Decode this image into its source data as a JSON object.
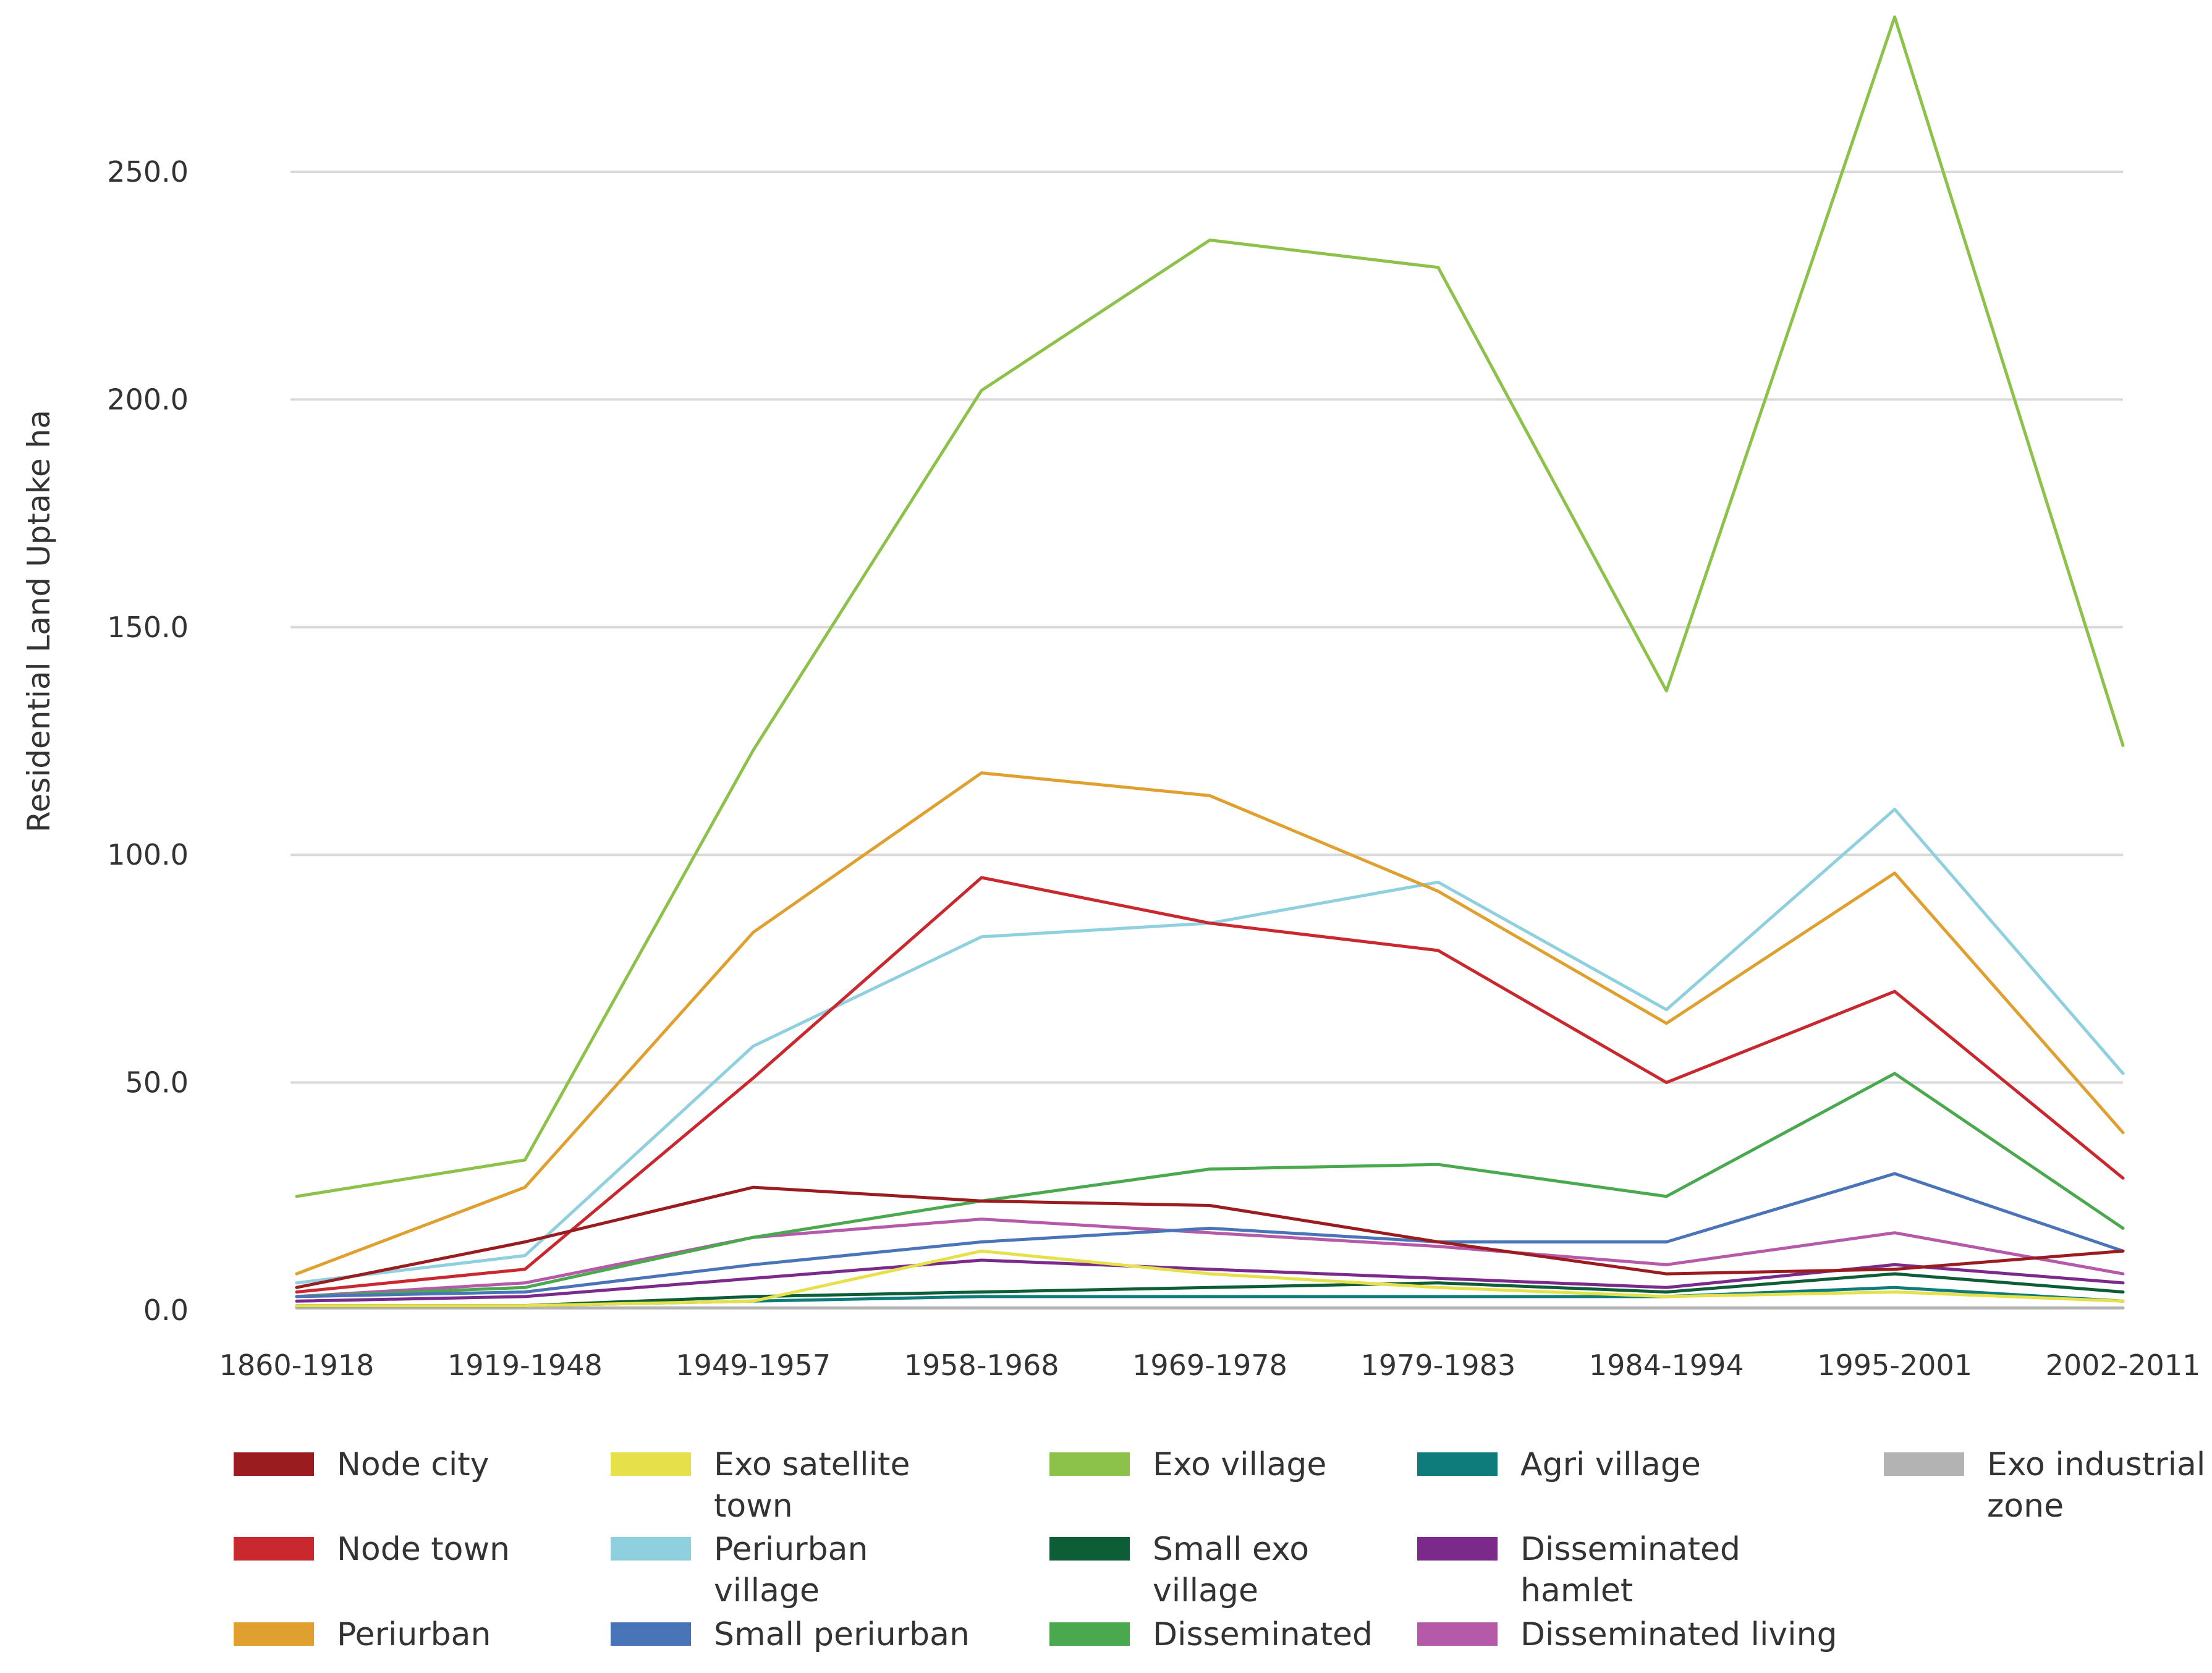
{
  "chart_data": {
    "type": "line",
    "title": "",
    "xlabel": "",
    "ylabel": "Residential  Land Uptake ha",
    "ylim": [
      0,
      280
    ],
    "yticks": [
      "0.0",
      "50.0",
      "100.0",
      "150.0",
      "200.0",
      "250.0"
    ],
    "ytick_values": [
      0,
      50,
      100,
      150,
      200,
      250
    ],
    "grid": true,
    "legend_position": "bottom",
    "categories": [
      "1860-1918",
      "1919-1948",
      "1949-1957",
      "1958-1968",
      "1969-1978",
      "1979-1983",
      "1984-1994",
      "1995-2001",
      "2002-2011"
    ],
    "series": [
      {
        "name": "Node city",
        "label_lines": [
          "Node city"
        ],
        "color": "#9b1c1f",
        "values": [
          5,
          15,
          27,
          24,
          23,
          15,
          8,
          9,
          13
        ]
      },
      {
        "name": "Node town",
        "label_lines": [
          "Node town"
        ],
        "color": "#c8282e",
        "values": [
          4,
          9,
          51,
          95,
          85,
          79,
          50,
          70,
          29
        ]
      },
      {
        "name": "Periurban",
        "label_lines": [
          "Periurban"
        ],
        "color": "#e0a030",
        "values": [
          8,
          27,
          83,
          118,
          113,
          92,
          63,
          96,
          39
        ]
      },
      {
        "name": "Exo satellite town",
        "label_lines": [
          "Exo satellite",
          "town"
        ],
        "color": "#e6e04a",
        "values": [
          1,
          1,
          2,
          13,
          8,
          5,
          3,
          4,
          2
        ]
      },
      {
        "name": "Periurban village",
        "label_lines": [
          "Periurban",
          "village"
        ],
        "color": "#8fd0de",
        "values": [
          6,
          12,
          58,
          82,
          85,
          94,
          66,
          110,
          52
        ]
      },
      {
        "name": "Small periurban",
        "label_lines": [
          "Small periurban"
        ],
        "color": "#4a74b8",
        "values": [
          3,
          4,
          10,
          15,
          18,
          15,
          15,
          30,
          13
        ]
      },
      {
        "name": "Exo village",
        "label_lines": [
          "Exo village"
        ],
        "color": "#8cc24a",
        "values": [
          25,
          33,
          123,
          202,
          235,
          229,
          136,
          284,
          124
        ]
      },
      {
        "name": "Small exo village",
        "label_lines": [
          "Small exo",
          "village"
        ],
        "color": "#0d5e36",
        "values": [
          1,
          1,
          3,
          4,
          5,
          6,
          4,
          8,
          4
        ]
      },
      {
        "name": "Disseminated",
        "label_lines": [
          "Disseminated"
        ],
        "color": "#4aa84e",
        "values": [
          3,
          5,
          16,
          24,
          31,
          32,
          25,
          52,
          18
        ]
      },
      {
        "name": "Agri village",
        "label_lines": [
          "Agri village"
        ],
        "color": "#0e7c7b",
        "values": [
          1,
          1,
          2,
          3,
          3,
          3,
          3,
          5,
          2
        ]
      },
      {
        "name": "Disseminated hamlet",
        "label_lines": [
          "Disseminated",
          "hamlet"
        ],
        "color": "#7b2a8c",
        "values": [
          2,
          3,
          7,
          11,
          9,
          7,
          5,
          10,
          6
        ]
      },
      {
        "name": "Disseminated living",
        "label_lines": [
          "Disseminated living"
        ],
        "color": "#b55aa8",
        "values": [
          3,
          6,
          16,
          20,
          17,
          14,
          10,
          17,
          8
        ]
      },
      {
        "name": "Exo industrial zone",
        "label_lines": [
          "Exo industrial",
          "zone"
        ],
        "color": "#b3b3b3",
        "values": [
          0.5,
          0.5,
          0.5,
          0.5,
          0.5,
          0.5,
          0.5,
          0.5,
          0.5
        ]
      }
    ]
  }
}
